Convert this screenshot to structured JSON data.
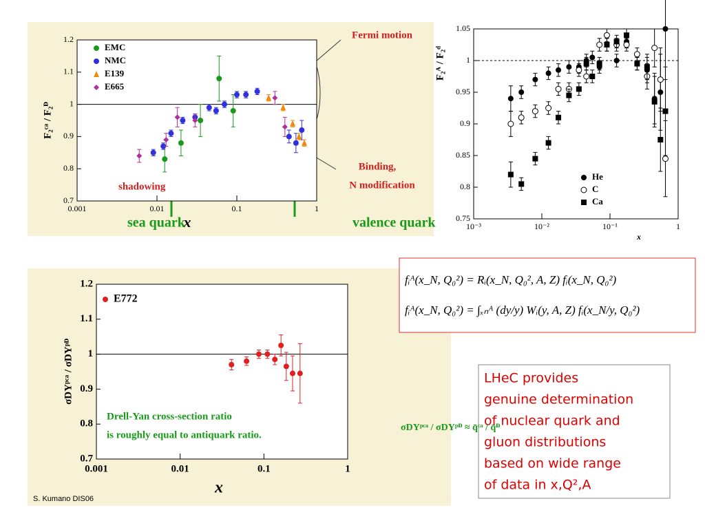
{
  "chart_data": [
    {
      "type": "scatter",
      "x_scale": "log",
      "xlim": [
        0.001,
        1
      ],
      "xticks": [
        0.001,
        0.01,
        0.1,
        1
      ],
      "ylim": [
        0.7,
        1.2
      ],
      "yticks": [
        0.7,
        0.8,
        0.9,
        1,
        1.1,
        1.2
      ],
      "x_label": "x",
      "y_label": "F₂ᶜᵃ / F₂ᴰ",
      "hline": 1,
      "legend": "upper left",
      "annotations": [
        "Fermi motion",
        "Binding,",
        "N modification",
        "shadowing",
        "sea quark",
        "valence quark"
      ],
      "series": [
        {
          "name": "EMC",
          "color": "#1a9a1a",
          "marker": "circle",
          "x": [
            0.0125,
            0.02,
            0.035,
            0.06,
            0.09
          ],
          "values": [
            0.83,
            0.88,
            0.95,
            1.08,
            0.98
          ],
          "errors": [
            0.04,
            0.04,
            0.05,
            0.07,
            0.05
          ]
        },
        {
          "name": "NMC",
          "color": "#3030dd",
          "marker": "circle",
          "x": [
            0.009,
            0.012,
            0.015,
            0.021,
            0.03,
            0.045,
            0.055,
            0.07,
            0.1,
            0.13,
            0.18,
            0.45,
            0.55,
            0.65
          ],
          "values": [
            0.85,
            0.87,
            0.91,
            0.95,
            0.96,
            0.99,
            0.98,
            1.0,
            1.03,
            1.03,
            1.04,
            0.9,
            0.88,
            0.92
          ],
          "errors": [
            0.01,
            0.01,
            0.01,
            0.01,
            0.01,
            0.01,
            0.01,
            0.01,
            0.01,
            0.01,
            0.01,
            0.02,
            0.03,
            0.03
          ]
        },
        {
          "name": "E139",
          "color": "#f08a10",
          "marker": "triangle",
          "x": [
            0.25,
            0.38,
            0.5,
            0.6,
            0.7
          ],
          "values": [
            1.02,
            0.99,
            0.94,
            0.9,
            0.88
          ],
          "errors": [
            0.01,
            0.01,
            0.01,
            0.01,
            0.01
          ]
        },
        {
          "name": "E665",
          "color": "#b0309a",
          "marker": "diamond",
          "x": [
            0.006,
            0.013,
            0.018,
            0.03,
            0.3,
            0.4
          ],
          "values": [
            0.84,
            0.89,
            0.96,
            0.95,
            1.02,
            0.93
          ],
          "errors": [
            0.02,
            0.02,
            0.03,
            0.02,
            0.02,
            0.03
          ]
        }
      ]
    },
    {
      "type": "scatter",
      "x_scale": "log",
      "xlim": [
        0.001,
        1
      ],
      "xticks": [
        {
          "value": 0.001,
          "label": "10⁻³"
        },
        {
          "value": 0.01,
          "label": "10⁻²"
        },
        {
          "value": 0.1,
          "label": "10⁻¹"
        },
        1
      ],
      "ylim": [
        0.75,
        1.05
      ],
      "yticks": [
        0.75,
        0.8,
        0.85,
        0.9,
        0.95,
        1,
        1.05
      ],
      "x_label": "x",
      "y_label": "F₂ᴬ / F₂ᵈ",
      "hline": 1,
      "legend": "lower center",
      "annotations": [],
      "series": [
        {
          "name": "He",
          "color": "#000000",
          "marker": "circle",
          "x": [
            0.0035,
            0.005,
            0.008,
            0.0125,
            0.0175,
            0.025,
            0.035,
            0.045,
            0.055,
            0.07,
            0.09,
            0.125,
            0.175,
            0.25,
            0.35,
            0.45,
            0.55,
            0.65
          ],
          "values": [
            0.94,
            0.95,
            0.97,
            0.98,
            0.985,
            0.99,
            0.99,
            1.0,
            1.005,
            0.99,
            1.025,
            1.0,
            1.03,
            0.995,
            0.985,
            0.94,
            0.95,
            1.05
          ],
          "errors": [
            0.02,
            0.01,
            0.01,
            0.01,
            0.01,
            0.01,
            0.01,
            0.01,
            0.01,
            0.01,
            0.01,
            0.01,
            0.01,
            0.01,
            0.02,
            0.04,
            0.06,
            0.08
          ]
        },
        {
          "name": "C",
          "color": "#000000",
          "marker": "open-circle",
          "x": [
            0.0035,
            0.005,
            0.008,
            0.0125,
            0.0175,
            0.025,
            0.035,
            0.045,
            0.07,
            0.09,
            0.125,
            0.175,
            0.25,
            0.35,
            0.45,
            0.55,
            0.65
          ],
          "values": [
            0.9,
            0.91,
            0.92,
            0.925,
            0.955,
            0.955,
            0.985,
            0.975,
            1.025,
            1.04,
            1.025,
            1.025,
            1.01,
            0.975,
            1.02,
            0.97,
            0.845
          ],
          "errors": [
            0.02,
            0.01,
            0.01,
            0.01,
            0.01,
            0.01,
            0.01,
            0.01,
            0.01,
            0.01,
            0.01,
            0.01,
            0.01,
            0.02,
            0.03,
            0.05,
            0.06
          ]
        },
        {
          "name": "Ca",
          "color": "#000000",
          "marker": "square",
          "x": [
            0.0035,
            0.005,
            0.008,
            0.0125,
            0.0175,
            0.025,
            0.035,
            0.045,
            0.055,
            0.07,
            0.09,
            0.125,
            0.175,
            0.25,
            0.35,
            0.45,
            0.55,
            0.65
          ],
          "values": [
            0.82,
            0.805,
            0.845,
            0.87,
            0.91,
            0.945,
            0.955,
            0.995,
            0.975,
            0.995,
            1.025,
            1.03,
            1.04,
            0.995,
            0.99,
            0.935,
            0.875,
            0.92
          ],
          "errors": [
            0.02,
            0.01,
            0.01,
            0.01,
            0.01,
            0.01,
            0.01,
            0.01,
            0.01,
            0.01,
            0.01,
            0.01,
            0.01,
            0.01,
            0.02,
            0.04,
            0.05,
            0.07
          ]
        }
      ]
    },
    {
      "type": "scatter",
      "x_scale": "log",
      "xlim": [
        0.001,
        1
      ],
      "xticks": [
        0.001,
        0.01,
        0.1,
        1
      ],
      "ylim": [
        0.7,
        1.2
      ],
      "yticks": [
        0.7,
        0.8,
        0.9,
        1,
        1.1,
        1.2
      ],
      "x_label": "x",
      "y_label": "σDYᵖᶜᵃ / σDYᵖᴰ",
      "hline": 1,
      "legend": "upper left",
      "annotations": [
        "Drell-Yan cross-section ratio",
        "is roughly equal to antiquark ratio.",
        "σDYᵖᶜᵃ / σDYᵖᴰ ≈ q̄ᶜᵃ / q̄ᴰ"
      ],
      "series": [
        {
          "name": "E772",
          "color": "#e02020",
          "marker": "circle",
          "x": [
            0.041,
            0.062,
            0.087,
            0.11,
            0.135,
            0.16,
            0.185,
            0.22,
            0.27
          ],
          "values": [
            0.97,
            0.98,
            1.0,
            1.0,
            0.985,
            1.025,
            0.965,
            0.945,
            0.945
          ],
          "errors": [
            0.015,
            0.012,
            0.012,
            0.012,
            0.015,
            0.03,
            0.04,
            0.05,
            0.085
          ]
        }
      ]
    }
  ],
  "slide": {
    "equations": [
      "fᵢᴬ(x_N, Q₀²) = Rᵢ(x_N, Q₀², A, Z) fᵢ(x_N, Q₀²)",
      "fᵢᴬ(x_N, Q₀²) = ∫ₓₙᴬ (dy/y) Wᵢ(y, A, Z) fᵢ(x_N/y, Q₀²)"
    ],
    "note": [
      "LHeC provides",
      "genuine determination",
      "of nuclear quark and",
      "gluon distributions",
      "based on wide range",
      "of data in x,Q²,A"
    ],
    "credit": "S. Kumano DIS06"
  }
}
